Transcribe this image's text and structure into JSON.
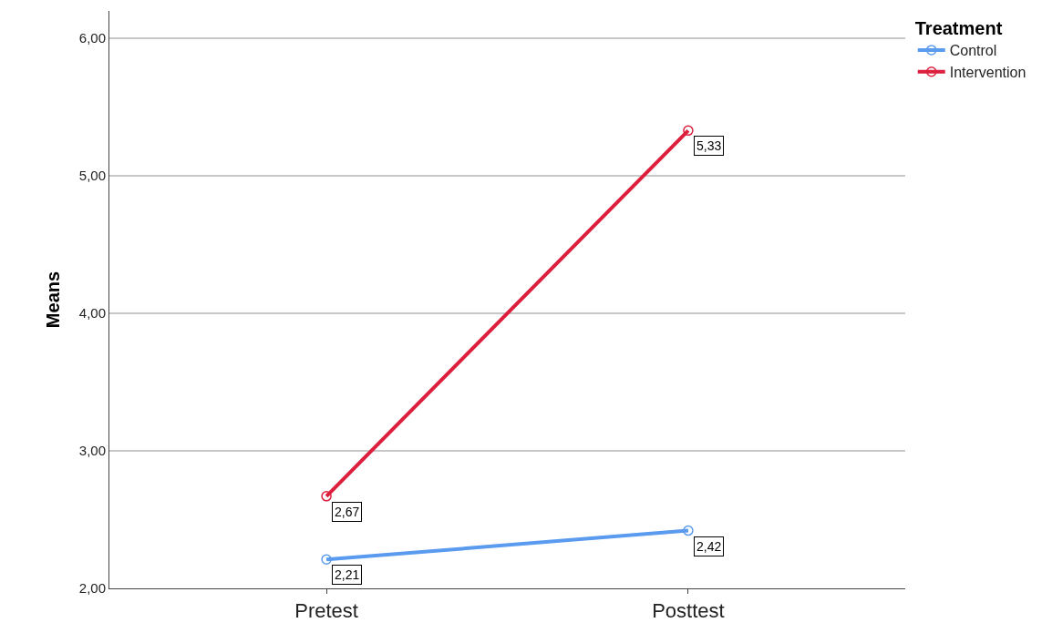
{
  "chart_data": {
    "type": "line",
    "ylabel": "Means",
    "legend_title": "Treatment",
    "categories": [
      "Pretest",
      "Posttest"
    ],
    "series": [
      {
        "name": "Control",
        "color": "#5b9bef",
        "values": [
          2.21,
          2.42
        ],
        "value_labels": [
          "2,21",
          "2,42"
        ]
      },
      {
        "name": "Intervention",
        "color": "#dc1f3c",
        "values": [
          2.67,
          5.33
        ],
        "value_labels": [
          "2,67",
          "5,33"
        ]
      }
    ],
    "ylim": [
      2,
      6.2
    ],
    "yticks": [
      {
        "value": 2,
        "label": "2,00"
      },
      {
        "value": 3,
        "label": "3,00"
      },
      {
        "value": 4,
        "label": "4,00"
      },
      {
        "value": 5,
        "label": "5,00"
      },
      {
        "value": 6,
        "label": "6,00"
      }
    ],
    "grid": "y",
    "legend": "top right",
    "marker": "circle",
    "line_style": "solid"
  }
}
